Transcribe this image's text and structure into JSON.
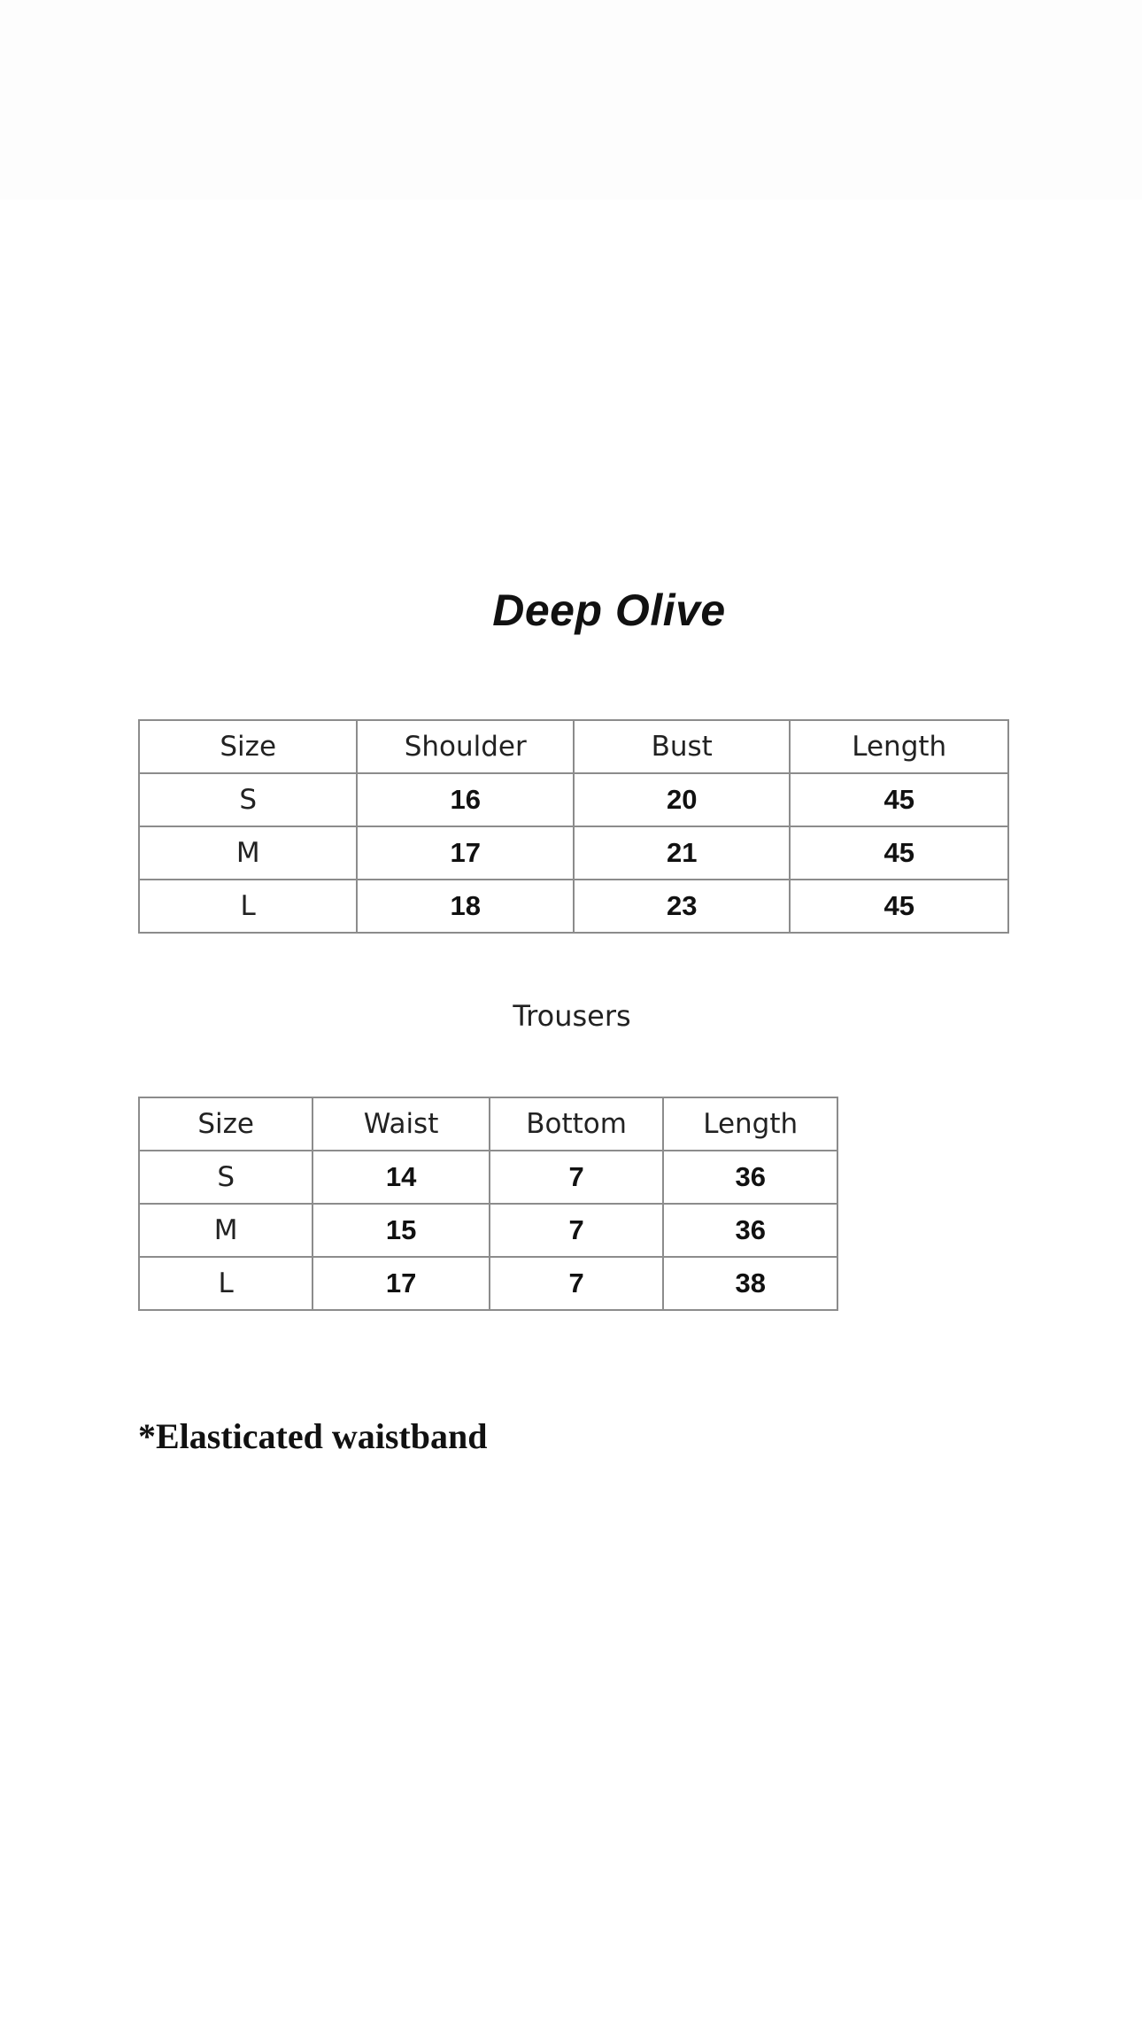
{
  "title": "Deep Olive",
  "top_table": {
    "headers": [
      "Size",
      "Shoulder",
      "Bust",
      "Length"
    ],
    "rows": [
      [
        "S",
        "16",
        "20",
        "45"
      ],
      [
        "M",
        "17",
        "21",
        "45"
      ],
      [
        "L",
        "18",
        "23",
        "45"
      ]
    ]
  },
  "trousers": {
    "label": "Trousers",
    "headers": [
      "Size",
      "Waist",
      "Bottom",
      "Length"
    ],
    "rows": [
      [
        "S",
        "14",
        "7",
        "36"
      ],
      [
        "M",
        "15",
        "7",
        "36"
      ],
      [
        "L",
        "17",
        "7",
        "38"
      ]
    ]
  },
  "note": "*Elasticated waistband"
}
